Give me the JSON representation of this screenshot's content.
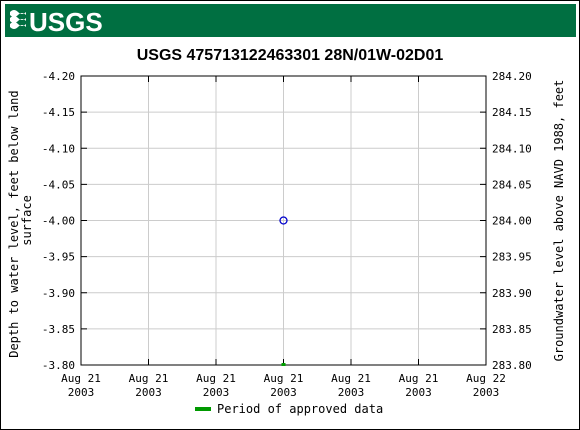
{
  "header": {
    "logo_text": "USGS",
    "background_color": "#006f41"
  },
  "chart_data": {
    "type": "scatter",
    "title": "USGS 475713122463301 28N/01W-02D01",
    "ylabel_left": "Depth to water level, feet below land surface",
    "ylabel_left_lines": [
      "Depth to water level, feet below land",
      "surface"
    ],
    "ylabel_right": "Groundwater level above NAVD 1988, feet",
    "y_left_range": [
      -4.2,
      -3.8
    ],
    "y_left_inverted": true,
    "y_right_range": [
      284.2,
      283.8
    ],
    "y_left_ticks": [
      "-4.20",
      "-4.15",
      "-4.10",
      "-4.05",
      "-4.00",
      "-3.95",
      "-3.90",
      "-3.85",
      "-3.80"
    ],
    "y_right_ticks": [
      "284.20",
      "284.15",
      "284.10",
      "284.05",
      "284.00",
      "283.95",
      "283.90",
      "283.85",
      "283.80"
    ],
    "x_ticks": [
      {
        "line1": "Aug 21",
        "line2": "2003"
      },
      {
        "line1": "Aug 21",
        "line2": "2003"
      },
      {
        "line1": "Aug 21",
        "line2": "2003"
      },
      {
        "line1": "Aug 21",
        "line2": "2003"
      },
      {
        "line1": "Aug 21",
        "line2": "2003"
      },
      {
        "line1": "Aug 21",
        "line2": "2003"
      },
      {
        "line1": "Aug 22",
        "line2": "2003"
      }
    ],
    "x_range_fraction": [
      0,
      1
    ],
    "grid": true,
    "points": [
      {
        "x_fraction": 0.5,
        "depth": -4.0,
        "marker": "open-circle",
        "color": "#0000cc"
      }
    ],
    "approved_periods": [
      {
        "x_fraction": 0.5,
        "color": "#00a000"
      }
    ],
    "legend": {
      "label": "Period of approved data",
      "color": "#009900",
      "placement": "bottom-center"
    }
  }
}
